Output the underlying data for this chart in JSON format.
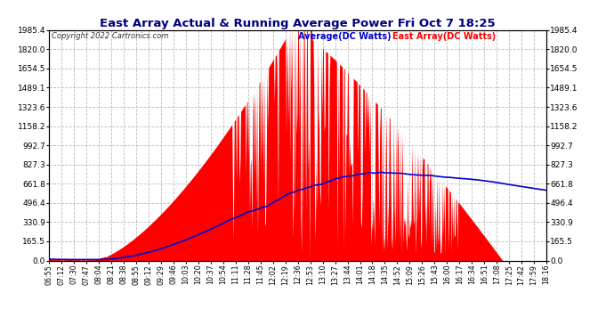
{
  "title": "East Array Actual & Running Average Power Fri Oct 7 18:25",
  "copyright": "Copyright 2022 Cartronics.com",
  "legend_avg": "Average(DC Watts)",
  "legend_east": "East Array(DC Watts)",
  "yticks": [
    0.0,
    165.5,
    330.9,
    496.4,
    661.8,
    827.3,
    992.7,
    1158.2,
    1323.6,
    1489.1,
    1654.5,
    1820.0,
    1985.4
  ],
  "ymax": 1985.4,
  "ymin": 0.0,
  "background_color": "#ffffff",
  "grid_color": "#bbbbbb",
  "bar_color": "#ff0000",
  "avg_color": "#0000cc",
  "title_color": "#000080",
  "copyright_color": "#333333",
  "xtick_labels": [
    "06:55",
    "07:12",
    "07:30",
    "07:47",
    "08:04",
    "08:21",
    "08:38",
    "08:55",
    "09:12",
    "09:29",
    "09:46",
    "10:03",
    "10:20",
    "10:37",
    "10:54",
    "11:11",
    "11:28",
    "11:45",
    "12:02",
    "12:19",
    "12:36",
    "12:53",
    "13:10",
    "13:27",
    "13:44",
    "14:01",
    "14:18",
    "14:35",
    "14:52",
    "15:09",
    "15:26",
    "15:43",
    "16:00",
    "16:17",
    "16:34",
    "16:51",
    "17:08",
    "17:25",
    "17:42",
    "17:59",
    "18:16"
  ]
}
